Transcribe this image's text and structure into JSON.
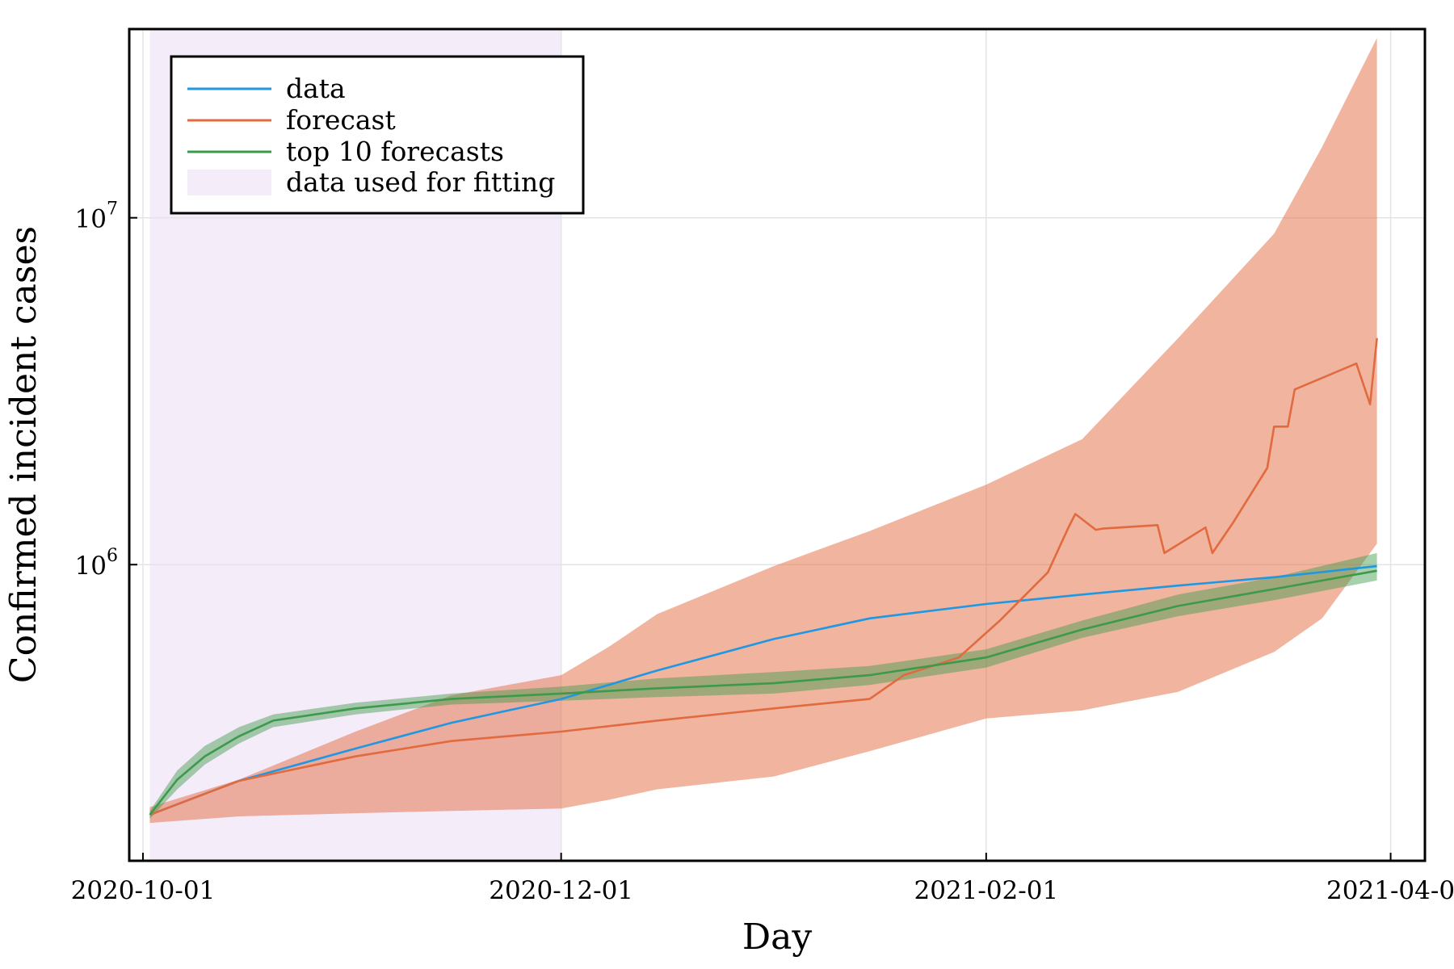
{
  "chart_data": {
    "type": "line",
    "title": "",
    "xlabel": "Day",
    "ylabel": "Confirmed incident cases",
    "x_range": [
      "2020-09-29",
      "2021-04-06"
    ],
    "y_scale": "log",
    "ylim": [
      140000,
      35000000
    ],
    "grid": true,
    "legend_position": "top-left",
    "x_ticks": [
      {
        "date": "2020-10-01",
        "label": "2020-10-01"
      },
      {
        "date": "2020-12-01",
        "label": "2020-12-01"
      },
      {
        "date": "2021-02-01",
        "label": "2021-02-01"
      },
      {
        "date": "2021-04-01",
        "label": "2021-04-0"
      }
    ],
    "y_ticks": [
      {
        "value": 1000000,
        "base": "10",
        "exp": "6"
      },
      {
        "value": 10000000,
        "base": "10",
        "exp": "7"
      }
    ],
    "fitting_window": {
      "name": "data used for fitting",
      "start": "2020-10-02",
      "end": "2020-12-01",
      "color": "#f5ecfa"
    },
    "series": [
      {
        "name": "data",
        "color": "#1f97e2",
        "x": [
          "2020-10-02",
          "2020-10-15",
          "2020-11-01",
          "2020-11-15",
          "2020-12-01",
          "2020-12-15",
          "2021-01-01",
          "2021-01-15",
          "2021-02-01",
          "2021-02-15",
          "2021-03-01",
          "2021-03-15",
          "2021-03-30"
        ],
        "y": [
          190000,
          238000,
          295000,
          350000,
          410000,
          495000,
          610000,
          700000,
          770000,
          820000,
          870000,
          920000,
          990000
        ]
      },
      {
        "name": "forecast",
        "color": "#e26a3f",
        "x": [
          "2020-10-02",
          "2020-10-15",
          "2020-11-01",
          "2020-11-15",
          "2020-12-01",
          "2020-12-15",
          "2021-01-01",
          "2021-01-15",
          "2021-01-20",
          "2021-01-28",
          "2021-02-03",
          "2021-02-10",
          "2021-02-13",
          "2021-02-14",
          "2021-02-17",
          "2021-02-18",
          "2021-02-26",
          "2021-02-27",
          "2021-03-05",
          "2021-03-06",
          "2021-03-09",
          "2021-03-14",
          "2021-03-15",
          "2021-03-17",
          "2021-03-18",
          "2021-03-27",
          "2021-03-29",
          "2021-03-30"
        ],
        "y": [
          190000,
          238000,
          280000,
          310000,
          330000,
          355000,
          385000,
          410000,
          480000,
          540000,
          690000,
          950000,
          1280000,
          1400000,
          1260000,
          1270000,
          1300000,
          1080000,
          1280000,
          1080000,
          1320000,
          1900000,
          2500000,
          2500000,
          3200000,
          3800000,
          2900000,
          4500000
        ]
      },
      {
        "name": "top 10 forecasts",
        "color": "#3c9a4a",
        "x": [
          "2020-10-02",
          "2020-10-06",
          "2020-10-10",
          "2020-10-15",
          "2020-10-20",
          "2020-11-01",
          "2020-11-15",
          "2020-12-01",
          "2020-12-15",
          "2021-01-01",
          "2021-01-15",
          "2021-02-01",
          "2021-02-15",
          "2021-03-01",
          "2021-03-15",
          "2021-03-30"
        ],
        "y": [
          190000,
          240000,
          280000,
          320000,
          355000,
          385000,
          410000,
          425000,
          440000,
          455000,
          480000,
          540000,
          650000,
          760000,
          850000,
          960000
        ]
      }
    ],
    "bands": [
      {
        "name": "forecast",
        "color": "#e26a3f",
        "opacity": 0.5,
        "x": [
          "2020-10-02",
          "2020-10-15",
          "2020-11-01",
          "2020-11-15",
          "2020-12-01",
          "2020-12-08",
          "2020-12-15",
          "2021-01-01",
          "2021-01-15",
          "2021-02-01",
          "2021-02-15",
          "2021-03-01",
          "2021-03-15",
          "2021-03-22",
          "2021-03-30"
        ],
        "upper": [
          200000,
          240000,
          330000,
          420000,
          480000,
          580000,
          720000,
          990000,
          1250000,
          1700000,
          2300000,
          4500000,
          9000000,
          16000000,
          33000000
        ],
        "lower": [
          180000,
          188000,
          192000,
          195000,
          198000,
          210000,
          225000,
          245000,
          290000,
          360000,
          380000,
          430000,
          560000,
          700000,
          1150000
        ]
      },
      {
        "name": "top 10 forecasts",
        "color": "#3c9a4a",
        "opacity": 0.45,
        "x": [
          "2020-10-02",
          "2020-10-06",
          "2020-10-10",
          "2020-10-15",
          "2020-10-20",
          "2020-11-01",
          "2020-11-15",
          "2020-12-01",
          "2020-12-15",
          "2021-01-01",
          "2021-01-15",
          "2021-02-01",
          "2021-02-15",
          "2021-03-01",
          "2021-03-15",
          "2021-03-30"
        ],
        "upper": [
          195000,
          255000,
          300000,
          340000,
          370000,
          400000,
          425000,
          445000,
          470000,
          490000,
          510000,
          570000,
          690000,
          820000,
          920000,
          1080000
        ],
        "lower": [
          185000,
          225000,
          265000,
          305000,
          340000,
          370000,
          395000,
          405000,
          415000,
          425000,
          450000,
          505000,
          615000,
          710000,
          790000,
          900000
        ]
      }
    ]
  }
}
